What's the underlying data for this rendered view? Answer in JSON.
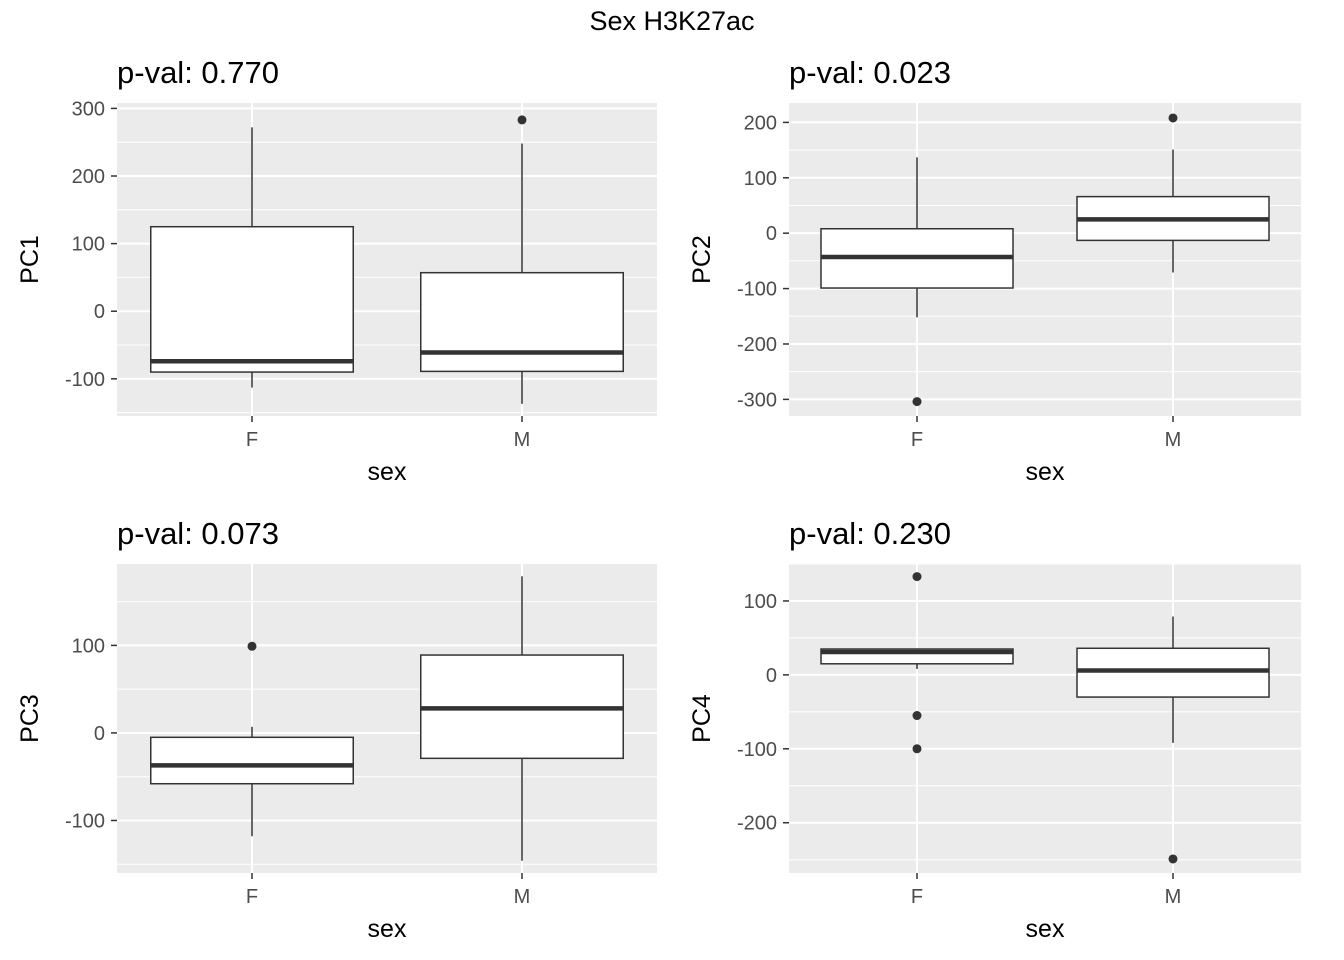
{
  "figure": {
    "title": "Sex H3K27ac"
  },
  "chart_data": [
    {
      "type": "box",
      "title": "p-val: 0.770",
      "xlabel": "sex",
      "ylabel": "PC1",
      "categories": [
        "F",
        "M"
      ],
      "ylim": [
        -155,
        308
      ],
      "yticks": [
        300,
        200,
        100,
        0,
        -100
      ],
      "grid": true,
      "boxes": [
        {
          "category": "F",
          "lower_whisker": -113,
          "q1": -90,
          "median": -74,
          "q3": 125,
          "upper_whisker": 272,
          "outliers": []
        },
        {
          "category": "M",
          "lower_whisker": -137,
          "q1": -89,
          "median": -61,
          "q3": 57,
          "upper_whisker": 248,
          "outliers": [
            283
          ]
        }
      ]
    },
    {
      "type": "box",
      "title": "p-val: 0.023",
      "xlabel": "sex",
      "ylabel": "PC2",
      "categories": [
        "F",
        "M"
      ],
      "ylim": [
        -330,
        235
      ],
      "yticks": [
        200,
        100,
        0,
        -100,
        -200,
        -300
      ],
      "grid": true,
      "boxes": [
        {
          "category": "F",
          "lower_whisker": -152,
          "q1": -99,
          "median": -43,
          "q3": 8,
          "upper_whisker": 137,
          "outliers": [
            -304
          ]
        },
        {
          "category": "M",
          "lower_whisker": -71,
          "q1": -13,
          "median": 25,
          "q3": 66,
          "upper_whisker": 151,
          "outliers": [
            208
          ]
        }
      ]
    },
    {
      "type": "box",
      "title": "p-val: 0.073",
      "xlabel": "sex",
      "ylabel": "PC3",
      "categories": [
        "F",
        "M"
      ],
      "ylim": [
        -160,
        193
      ],
      "yticks": [
        100,
        0,
        -100
      ],
      "grid": true,
      "boxes": [
        {
          "category": "F",
          "lower_whisker": -118,
          "q1": -58,
          "median": -37,
          "q3": -5,
          "upper_whisker": 7,
          "outliers": [
            99
          ]
        },
        {
          "category": "M",
          "lower_whisker": -146,
          "q1": -29,
          "median": 28,
          "q3": 89,
          "upper_whisker": 179,
          "outliers": []
        }
      ]
    },
    {
      "type": "box",
      "title": "p-val: 0.230",
      "xlabel": "sex",
      "ylabel": "PC4",
      "categories": [
        "F",
        "M"
      ],
      "ylim": [
        -268,
        150
      ],
      "yticks": [
        100,
        0,
        -100,
        -200
      ],
      "grid": true,
      "boxes": [
        {
          "category": "F",
          "lower_whisker": 8,
          "q1": 15,
          "median": 31,
          "q3": 35,
          "upper_whisker": 35,
          "outliers": [
            133,
            -55,
            -100
          ]
        },
        {
          "category": "M",
          "lower_whisker": -92,
          "q1": -30,
          "median": 6,
          "q3": 36,
          "upper_whisker": 79,
          "outliers": [
            -249
          ]
        }
      ]
    }
  ]
}
